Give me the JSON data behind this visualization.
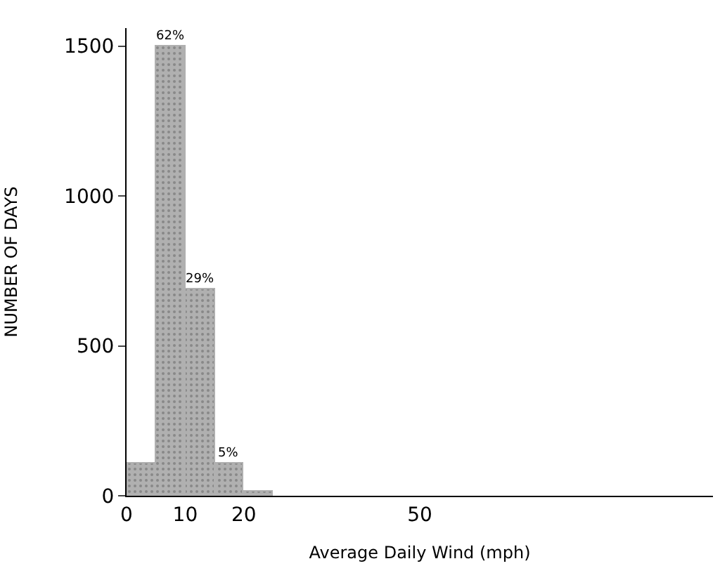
{
  "chart_data": {
    "type": "histogram",
    "xlabel": "Average Daily Wind (mph)",
    "ylabel": "NUMBER OF DAYS",
    "bins": [
      0,
      5,
      10,
      15,
      20,
      25
    ],
    "values": [
      110,
      1500,
      690,
      110,
      15
    ],
    "annotations": [
      {
        "text": "62%",
        "x": 7.5,
        "y": 1500
      },
      {
        "text": "29%",
        "x": 12.5,
        "y": 690
      },
      {
        "text": "5%",
        "x": 17.5,
        "y": 110
      }
    ],
    "color": "#b0b0b0",
    "xlim": [
      0,
      100
    ],
    "xticks": [
      0,
      10,
      20,
      50
    ],
    "ylim": [
      0,
      1560
    ],
    "yticks": [
      0,
      500,
      1000,
      1500
    ]
  }
}
